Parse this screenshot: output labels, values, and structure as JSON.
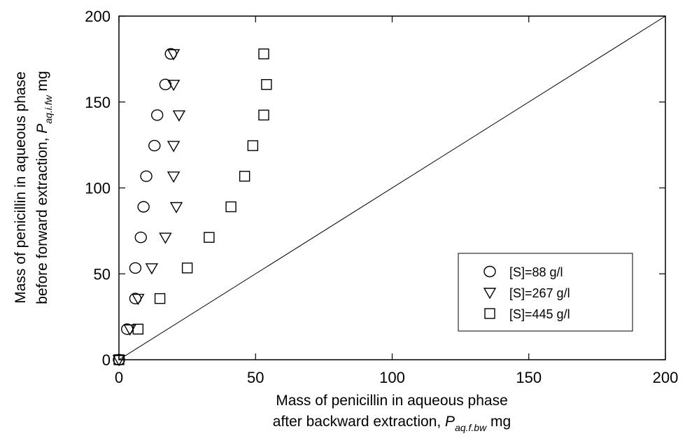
{
  "chart_data": {
    "type": "scatter",
    "xlim": [
      0,
      200
    ],
    "ylim": [
      0,
      200
    ],
    "xticks": [
      0,
      50,
      100,
      150,
      200
    ],
    "yticks": [
      0,
      50,
      100,
      150,
      200
    ],
    "xlabel": {
      "line1": "Mass of penicillin in aqueous phase",
      "line2_prefix": "after backward extraction, ",
      "var": "P",
      "sub": "aq.f.bw",
      "unit": " mg"
    },
    "ylabel": {
      "line1": "Mass of penicillin in aqueous phase",
      "line2_prefix": "before forward extraction, ",
      "var": "P",
      "sub": "aq.i.fw",
      "unit": " mg"
    },
    "reference_line": {
      "from": [
        0,
        0
      ],
      "to": [
        200,
        200
      ]
    },
    "legend": {
      "position": "lower-right"
    },
    "series": [
      {
        "name": "[S]=88 g/l",
        "marker": "circle",
        "points": [
          [
            0,
            0
          ],
          [
            3,
            17.8
          ],
          [
            6,
            35.6
          ],
          [
            6,
            53.4
          ],
          [
            8,
            71.2
          ],
          [
            9,
            89
          ],
          [
            10,
            106.8
          ],
          [
            13,
            124.6
          ],
          [
            14,
            142.4
          ],
          [
            17,
            160.2
          ],
          [
            19,
            178
          ]
        ]
      },
      {
        "name": "[S]=267 g/l",
        "marker": "triangle-down",
        "points": [
          [
            0,
            0
          ],
          [
            4,
            17.8
          ],
          [
            7,
            35.6
          ],
          [
            12,
            53.4
          ],
          [
            17,
            71.2
          ],
          [
            21,
            89
          ],
          [
            20,
            106.8
          ],
          [
            20,
            124.6
          ],
          [
            22,
            142.4
          ],
          [
            20,
            160.2
          ],
          [
            20,
            178
          ]
        ]
      },
      {
        "name": "[S]=445 g/l",
        "marker": "square",
        "points": [
          [
            0,
            0
          ],
          [
            7,
            17.8
          ],
          [
            15,
            35.6
          ],
          [
            25,
            53.4
          ],
          [
            33,
            71.2
          ],
          [
            41,
            89
          ],
          [
            46,
            106.8
          ],
          [
            49,
            124.6
          ],
          [
            53,
            142.4
          ],
          [
            54,
            160.2
          ],
          [
            53,
            178
          ]
        ]
      }
    ]
  }
}
